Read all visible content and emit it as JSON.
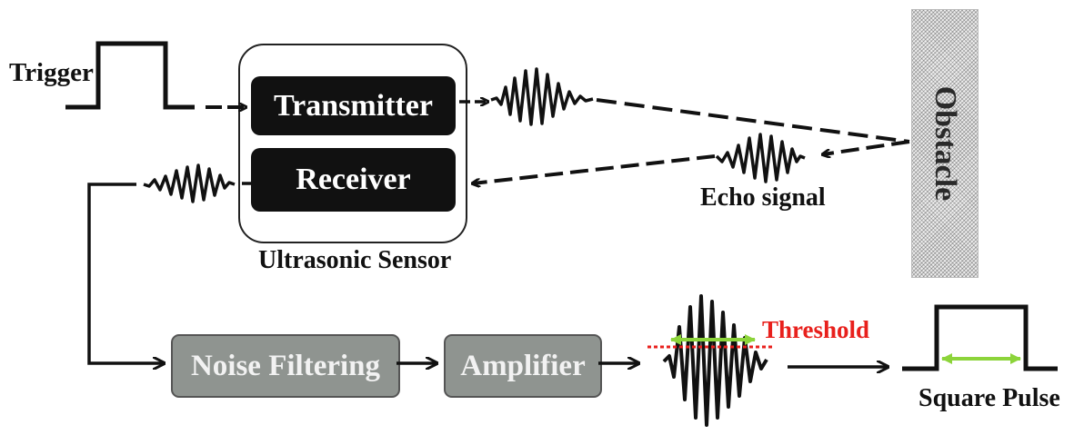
{
  "labels": {
    "trigger": "Trigger",
    "transmitter": "Transmitter",
    "receiver": "Receiver",
    "sensor": "Ultrasonic Sensor",
    "obstacle": "Obstacle",
    "echo": "Echo signal",
    "noise_filtering": "Noise Filtering",
    "amplifier": "Amplifier",
    "threshold": "Threshold",
    "square_pulse": "Square Pulse"
  },
  "colors": {
    "ink": "#111111",
    "block_grey": "#8f9490",
    "threshold_red": "#e8201c",
    "width_green": "#8cd43a"
  }
}
